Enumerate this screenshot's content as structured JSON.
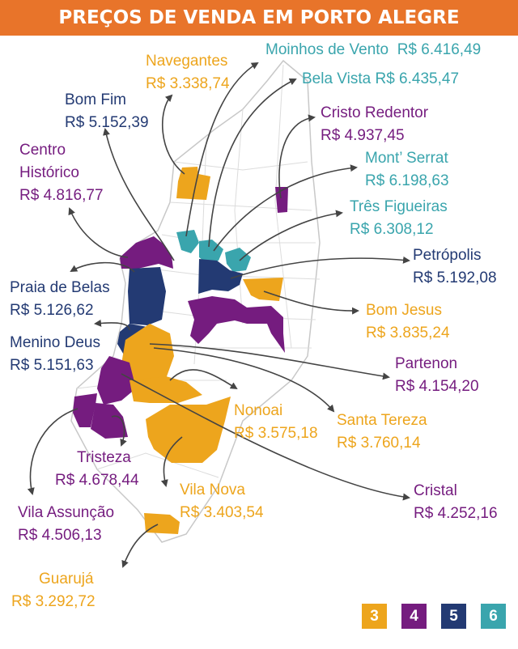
{
  "title": "PREÇOS DE VENDA EM PORTO ALEGRE",
  "colors": {
    "3": "#eda51d",
    "4": "#751c7f",
    "5": "#233a73",
    "6": "#3aa5ad"
  },
  "neighborhoods": [
    {
      "name": "Navegantes",
      "price": "R$ 3.338,74",
      "class": 3
    },
    {
      "name": "Moinhos de Vento",
      "price": "R$ 6.416,49",
      "class": 6
    },
    {
      "name": "Bela Vista",
      "price": "R$ 6.435,47",
      "class": 6
    },
    {
      "name": "Bom Fim",
      "price": "R$ 5.152,39",
      "class": 5
    },
    {
      "name": "Cristo Redentor",
      "price": "R$ 4.937,45",
      "class": 4
    },
    {
      "name": "Centro",
      "name2": "Histórico",
      "price": "R$ 4.816,77",
      "class": 4
    },
    {
      "name": "Mont’ Serrat",
      "price": "R$ 6.198,63",
      "class": 6
    },
    {
      "name": "Três Figueiras",
      "price": "R$ 6.308,12",
      "class": 6
    },
    {
      "name": "Petrópolis",
      "price": "R$ 5.192,08",
      "class": 5
    },
    {
      "name": "Praia de Belas",
      "price": "R$ 5.126,62",
      "class": 5
    },
    {
      "name": "Bom Jesus",
      "price": "R$ 3.835,24",
      "class": 3
    },
    {
      "name": "Menino Deus",
      "price": "R$ 5.151,63",
      "class": 5
    },
    {
      "name": "Partenon",
      "price": "R$ 4.154,20",
      "class": 4
    },
    {
      "name": "Nonoai",
      "price": "R$ 3.575,18",
      "class": 3
    },
    {
      "name": "Santa Tereza",
      "price": "R$ 3.760,14",
      "class": 3
    },
    {
      "name": "Tristeza",
      "price": "R$ 4.678,44",
      "class": 4
    },
    {
      "name": "Vila Nova",
      "price": "R$ 3.403,54",
      "class": 3
    },
    {
      "name": "Cristal",
      "price": "R$ 4.252,16",
      "class": 4
    },
    {
      "name": "Vila Assunção",
      "price": "R$ 4.506,13",
      "class": 4
    },
    {
      "name": "Guarujá",
      "price": "R$ 3.292,72",
      "class": 3
    }
  ],
  "legend": [
    "3",
    "4",
    "5",
    "6"
  ]
}
